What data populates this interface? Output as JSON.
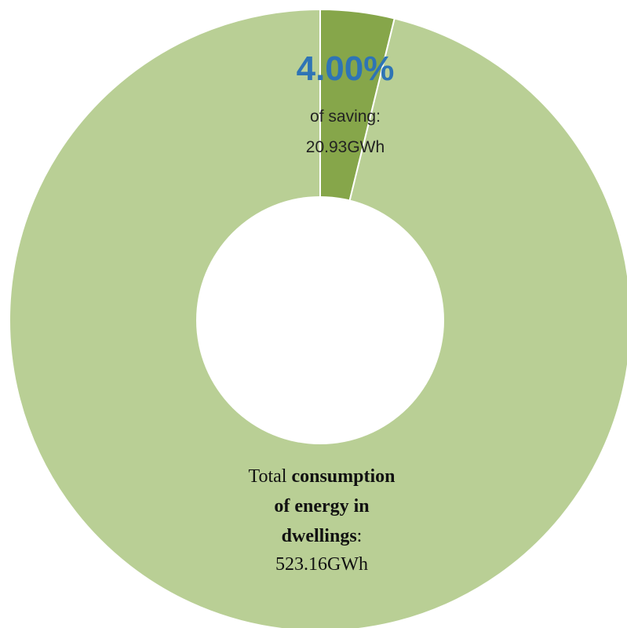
{
  "chart_data": {
    "type": "pie",
    "slices": [
      {
        "label": "of saving",
        "value": 20.93,
        "value_text": "20.93GWh",
        "percent_text": "4.00%",
        "color": "#86a64a"
      },
      {
        "label": "Total consumption of energy in dwellings",
        "value": 523.16,
        "value_text": "523.16GWh",
        "color": "#b9cf95"
      }
    ],
    "donut": true,
    "percent_color": "#2e74b5",
    "text": {
      "saving_pct": "4.00%",
      "saving_label": "of saving:",
      "saving_value": "20.93GWh",
      "total_prefix": "Total",
      "total_bold_1": "consumption",
      "total_line_2": "of energy in",
      "total_line_3": "dwellings",
      "total_colon": ":",
      "total_value": "523.16GWh"
    }
  }
}
